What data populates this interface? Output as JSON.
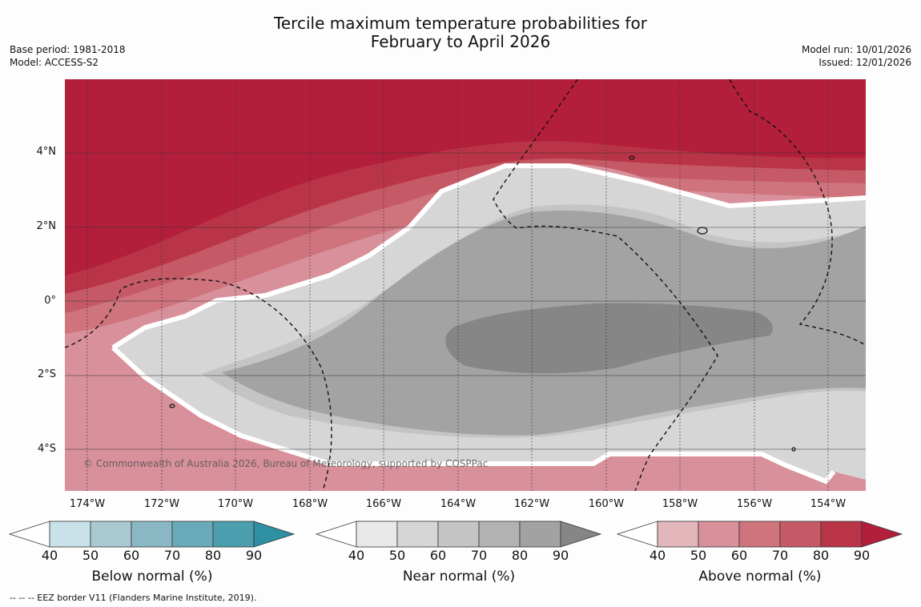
{
  "title": {
    "line1": "Tercile maximum temperature probabilities for",
    "line2": "February to April 2026"
  },
  "meta": {
    "base_period": "Base period: 1981-2018",
    "model": "Model: ACCESS-S2",
    "model_run": "Model run: 10/01/2026",
    "issued": "Issued: 12/01/2026"
  },
  "axes": {
    "y_labels": [
      "4°N",
      "2°N",
      "0°",
      "2°S",
      "4°S"
    ],
    "x_labels": [
      "174°W",
      "172°W",
      "170°W",
      "168°W",
      "166°W",
      "164°W",
      "162°W",
      "160°W",
      "158°W",
      "156°W",
      "154°W"
    ]
  },
  "copyright": "© Commonwealth of Australia 2026, Bureau of Meteorology, supported by COSPPac",
  "colorbars": [
    {
      "label": "Below normal (%)",
      "ticks": [
        "40",
        "50",
        "60",
        "70",
        "80",
        "90"
      ],
      "colors": [
        "#ffffff",
        "#c9e1e8",
        "#a8c9d0",
        "#89b7c4",
        "#69a9b8",
        "#4a9eae",
        "#2f8fa3"
      ]
    },
    {
      "label": "Near normal (%)",
      "ticks": [
        "40",
        "50",
        "60",
        "70",
        "80",
        "90"
      ],
      "colors": [
        "#ffffff",
        "#e8e8e8",
        "#d6d6d6",
        "#c4c4c4",
        "#b2b2b2",
        "#a2a2a2",
        "#868686"
      ]
    },
    {
      "label": "Above normal (%)",
      "ticks": [
        "40",
        "50",
        "60",
        "70",
        "80",
        "90"
      ],
      "colors": [
        "#ffffff",
        "#e3b6bb",
        "#d8909a",
        "#cf737d",
        "#c55a66",
        "#b93446",
        "#b31e3b"
      ]
    }
  ],
  "footer": "--  --  -- EEZ border V11 (Flanders Marine Institute, 2019)."
}
